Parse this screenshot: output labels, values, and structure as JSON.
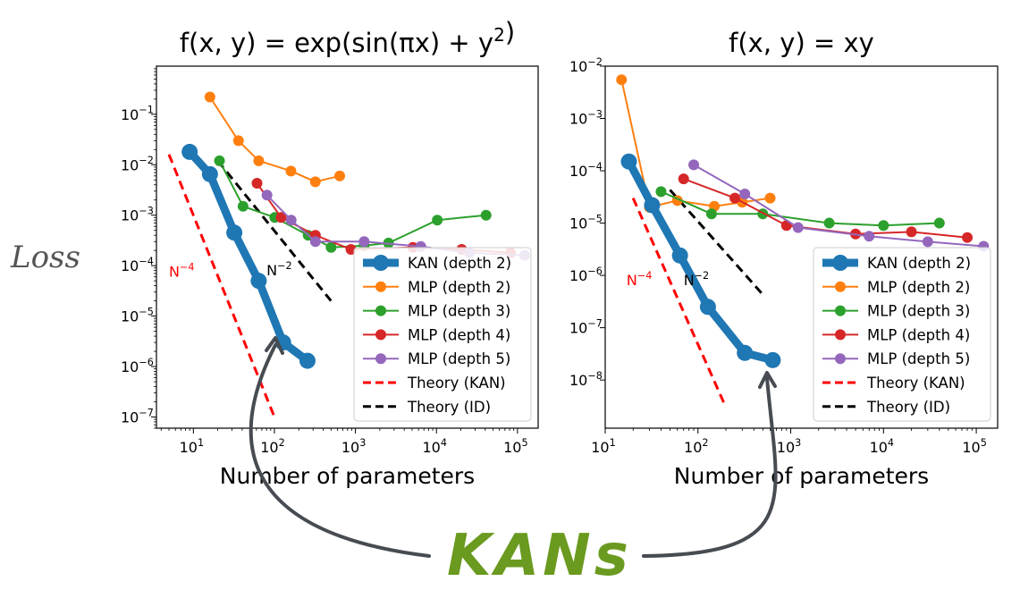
{
  "figure": {
    "loss_label": "Loss",
    "kans_label": "KANs",
    "arrow_color": "#474b52",
    "kans_color": "#6a9a1f"
  },
  "styles": {
    "KAN (depth 2)": {
      "color": "#1f77b4"
    },
    "MLP (depth 2)": {
      "color": "#ff7f0e"
    },
    "MLP (depth 3)": {
      "color": "#2ca02c"
    },
    "MLP (depth 4)": {
      "color": "#d62728"
    },
    "MLP (depth 5)": {
      "color": "#9467bd"
    },
    "Theory (KAN)": {
      "color": "#ff0000"
    },
    "Theory (ID)": {
      "color": "#000000"
    }
  },
  "chart_data": [
    {
      "type": "line",
      "title": "f(x, y) = exp(sin(πx) + y²)",
      "xlabel": "Number of parameters",
      "ylabel": "Loss",
      "xscale": "log",
      "yscale": "log",
      "xlim": [
        3.5,
        180000
      ],
      "ylim": [
        6e-08,
        0.9
      ],
      "x_ticks": [
        {
          "base": "10",
          "exp": "1",
          "v": 10
        },
        {
          "base": "10",
          "exp": "2",
          "v": 100
        },
        {
          "base": "10",
          "exp": "3",
          "v": 1000
        },
        {
          "base": "10",
          "exp": "4",
          "v": 10000
        },
        {
          "base": "10",
          "exp": "5",
          "v": 100000
        }
      ],
      "y_ticks": [
        {
          "base": "10",
          "exp": "−7",
          "v": 1e-07
        },
        {
          "base": "10",
          "exp": "−6",
          "v": 1e-06
        },
        {
          "base": "10",
          "exp": "−5",
          "v": 1e-05
        },
        {
          "base": "10",
          "exp": "−4",
          "v": 0.0001
        },
        {
          "base": "10",
          "exp": "−3",
          "v": 0.001
        },
        {
          "base": "10",
          "exp": "−2",
          "v": 0.01
        },
        {
          "base": "10",
          "exp": "−1",
          "v": 0.1
        }
      ],
      "legend": "lower-right",
      "grid": false,
      "series": [
        {
          "name": "KAN (depth 2)",
          "x": [
            9,
            16,
            32,
            64,
            128,
            256
          ],
          "y": [
            0.018,
            0.0065,
            0.00045,
            5e-05,
            3e-06,
            1.3e-06
          ]
        },
        {
          "name": "MLP (depth 2)",
          "x": [
            16,
            36,
            64,
            160,
            320,
            640
          ],
          "y": [
            0.22,
            0.03,
            0.012,
            0.0075,
            0.0046,
            0.006
          ]
        },
        {
          "name": "MLP (depth 3)",
          "x": [
            21,
            41,
            101,
            261,
            501,
            1281,
            2561,
            10241,
            40961
          ],
          "y": [
            0.012,
            0.0015,
            0.0009,
            0.0004,
            0.00023,
            0.00025,
            0.00028,
            0.0008,
            0.001
          ]
        },
        {
          "name": "MLP (depth 4)",
          "x": [
            61,
            121,
            321,
            881,
            5121,
            20481,
            81921
          ],
          "y": [
            0.0043,
            0.0009,
            0.0004,
            0.00021,
            0.00023,
            0.00021,
            0.00018
          ]
        },
        {
          "name": "MLP (depth 5)",
          "x": [
            81,
            161,
            321,
            1281,
            6401,
            25601,
            122881
          ],
          "y": [
            0.0025,
            0.0008,
            0.0003,
            0.0003,
            0.00024,
            0.00018,
            0.00016
          ]
        },
        {
          "name": "Theory (KAN)",
          "x": [
            5,
            100
          ],
          "y": [
            0.016,
            1e-07
          ]
        },
        {
          "name": "Theory (ID)",
          "x": [
            20,
            500
          ],
          "y": [
            0.012,
            2e-05
          ]
        }
      ],
      "annotations": [
        {
          "text": "N",
          "exp": "−4",
          "x": 5,
          "y": 6e-05,
          "color": "#ff0000"
        },
        {
          "text": "N",
          "exp": "−2",
          "x": 80,
          "y": 6.4e-05,
          "color": "#000000"
        }
      ]
    },
    {
      "type": "line",
      "title": "f(x, y) = xy",
      "xlabel": "Number of parameters",
      "ylabel": "",
      "xscale": "log",
      "yscale": "log",
      "xlim": [
        10,
        170000
      ],
      "ylim": [
        1.2e-09,
        0.01
      ],
      "x_ticks": [
        {
          "base": "10",
          "exp": "1",
          "v": 10
        },
        {
          "base": "10",
          "exp": "2",
          "v": 100
        },
        {
          "base": "10",
          "exp": "3",
          "v": 1000
        },
        {
          "base": "10",
          "exp": "4",
          "v": 10000
        },
        {
          "base": "10",
          "exp": "5",
          "v": 100000
        }
      ],
      "y_ticks": [
        {
          "base": "10",
          "exp": "−8",
          "v": 1e-08
        },
        {
          "base": "10",
          "exp": "−7",
          "v": 1e-07
        },
        {
          "base": "10",
          "exp": "−6",
          "v": 1e-06
        },
        {
          "base": "10",
          "exp": "−5",
          "v": 1e-05
        },
        {
          "base": "10",
          "exp": "−4",
          "v": 0.0001
        },
        {
          "base": "10",
          "exp": "−3",
          "v": 0.001
        },
        {
          "base": "10",
          "exp": "−2",
          "v": 0.01
        }
      ],
      "legend": "lower-right",
      "grid": false,
      "series": [
        {
          "name": "KAN (depth 2)",
          "x": [
            18,
            32,
            64,
            128,
            320,
            640
          ],
          "y": [
            0.00015,
            2.2e-05,
            2.4e-06,
            2.5e-07,
            3.3e-08,
            2.4e-08
          ]
        },
        {
          "name": "MLP (depth 2)",
          "x": [
            15,
            30,
            60,
            150,
            300,
            600
          ],
          "y": [
            0.0055,
            2e-05,
            2.7e-05,
            2.1e-05,
            2.5e-05,
            3e-05
          ]
        },
        {
          "name": "MLP (depth 3)",
          "x": [
            40,
            140,
            500,
            2600,
            10000,
            40000
          ],
          "y": [
            4e-05,
            1.5e-05,
            1.5e-05,
            1e-05,
            9e-06,
            1e-05
          ]
        },
        {
          "name": "MLP (depth 4)",
          "x": [
            70,
            250,
            900,
            5000,
            20000,
            80000
          ],
          "y": [
            7e-05,
            3e-05,
            9e-06,
            6.2e-06,
            6.8e-06,
            5.3e-06
          ]
        },
        {
          "name": "MLP (depth 5)",
          "x": [
            90,
            320,
            1200,
            7000,
            30000,
            120000
          ],
          "y": [
            0.00013,
            3.6e-05,
            8.2e-06,
            5.6e-06,
            4.4e-06,
            3.6e-06
          ]
        },
        {
          "name": "Theory (KAN)",
          "x": [
            20,
            200
          ],
          "y": [
            3e-05,
            3e-09
          ]
        },
        {
          "name": "Theory (ID)",
          "x": [
            50,
            500
          ],
          "y": [
            4.3e-05,
            4.3e-07
          ]
        }
      ],
      "annotations": [
        {
          "text": "N",
          "exp": "−4",
          "x": 17,
          "y": 6.5e-07,
          "color": "#ff0000"
        },
        {
          "text": "N",
          "exp": "−2",
          "x": 70,
          "y": 6.5e-07,
          "color": "#000000"
        }
      ]
    }
  ]
}
